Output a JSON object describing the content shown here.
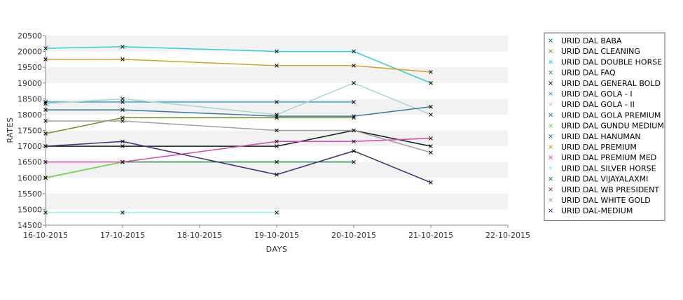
{
  "chart_data": {
    "type": "line",
    "xlabel": "DAYS",
    "ylabel": "RATES",
    "x_ticks": [
      "16-10-2015",
      "17-10-2015",
      "18-10-2015",
      "19-10-2015",
      "20-10-2015",
      "21-10-2015",
      "22-10-2015"
    ],
    "y_ticks": [
      14500,
      15000,
      15500,
      16000,
      16500,
      17000,
      17500,
      18000,
      18500,
      19000,
      19500,
      20000,
      20500
    ],
    "ylim": [
      14500,
      20500
    ],
    "x_domain": [
      "16-10-2015",
      "22-10-2015"
    ],
    "grid": "alternating horizontal bands",
    "legend_position": "right",
    "series": [
      {
        "name": "URID DAL BABA",
        "color": "#1a8a3a",
        "points": [
          [
            "16-10-2015",
            16000
          ],
          [
            "17-10-2015",
            16500
          ],
          [
            "19-10-2015",
            16500
          ],
          [
            "20-10-2015",
            16500
          ]
        ]
      },
      {
        "name": "URID DAL CLEANING",
        "color": "#6b8e23",
        "points": [
          [
            "16-10-2015",
            17400
          ],
          [
            "17-10-2015",
            17900
          ],
          [
            "19-10-2015",
            17900
          ],
          [
            "20-10-2015",
            17900
          ]
        ]
      },
      {
        "name": "URID DAL DOUBLE HORSE",
        "color": "#2ed0d8",
        "points": [
          [
            "16-10-2015",
            20100
          ],
          [
            "17-10-2015",
            20150
          ],
          [
            "19-10-2015",
            20000
          ],
          [
            "20-10-2015",
            20000
          ],
          [
            "21-10-2015",
            19000
          ]
        ]
      },
      {
        "name": "URID DAL FAQ",
        "color": "#4a8a6a",
        "points": []
      },
      {
        "name": "URID DAL GENERAL BOLD",
        "color": "#0a1f1f",
        "points": [
          [
            "16-10-2015",
            17000
          ],
          [
            "17-10-2015",
            17000
          ],
          [
            "19-10-2015",
            17000
          ],
          [
            "20-10-2015",
            17500
          ],
          [
            "21-10-2015",
            17000
          ]
        ]
      },
      {
        "name": "URID DAL GOLA - I",
        "color": "#3aa0d0",
        "points": [
          [
            "16-10-2015",
            18400
          ],
          [
            "17-10-2015",
            18400
          ],
          [
            "19-10-2015",
            18400
          ],
          [
            "20-10-2015",
            18400
          ]
        ]
      },
      {
        "name": "URID DAL GOLA - II",
        "color": "#a8d8c8",
        "points": [
          [
            "16-10-2015",
            18350
          ],
          [
            "17-10-2015",
            18500
          ],
          [
            "19-10-2015",
            18000
          ],
          [
            "20-10-2015",
            19000
          ],
          [
            "21-10-2015",
            18000
          ]
        ]
      },
      {
        "name": "URID DAL GOLA PREMIUM",
        "color": "#3a7a9a",
        "points": [
          [
            "16-10-2015",
            18150
          ],
          [
            "17-10-2015",
            18150
          ],
          [
            "19-10-2015",
            17950
          ],
          [
            "20-10-2015",
            17950
          ],
          [
            "21-10-2015",
            18250
          ]
        ]
      },
      {
        "name": "URID DAL GUNDU MEDIUM",
        "color": "#7fd44a",
        "points": [
          [
            "16-10-2015",
            16000
          ],
          [
            "17-10-2015",
            16500
          ]
        ]
      },
      {
        "name": "URID DAL HANUMAN",
        "color": "#2a6a7a",
        "points": []
      },
      {
        "name": "URID DAL PREMIUM",
        "color": "#d4a020",
        "points": [
          [
            "16-10-2015",
            19750
          ],
          [
            "17-10-2015",
            19750
          ],
          [
            "19-10-2015",
            19550
          ],
          [
            "20-10-2015",
            19550
          ],
          [
            "21-10-2015",
            19350
          ]
        ]
      },
      {
        "name": "URID DAL PREMIUM MED",
        "color": "#e040b0",
        "points": [
          [
            "16-10-2015",
            16500
          ],
          [
            "17-10-2015",
            16500
          ],
          [
            "19-10-2015",
            17150
          ],
          [
            "20-10-2015",
            17150
          ],
          [
            "21-10-2015",
            17250
          ]
        ]
      },
      {
        "name": "URID DAL SILVER HORSE",
        "color": "#8cf0f0",
        "points": [
          [
            "16-10-2015",
            14900
          ],
          [
            "17-10-2015",
            14900
          ],
          [
            "19-10-2015",
            14900
          ]
        ]
      },
      {
        "name": "URID DAL VIJAYALAXMI",
        "color": "#1a7a8a",
        "points": []
      },
      {
        "name": "URID DAL WB PRESIDENT",
        "color": "#8a2a6a",
        "points": []
      },
      {
        "name": "URID DAL WHITE GOLD",
        "color": "#a0a0a0",
        "points": [
          [
            "16-10-2015",
            17800
          ],
          [
            "17-10-2015",
            17800
          ],
          [
            "19-10-2015",
            17500
          ],
          [
            "20-10-2015",
            17500
          ],
          [
            "21-10-2015",
            16800
          ]
        ]
      },
      {
        "name": "URID DAL-MEDIUM",
        "color": "#4a2a7a",
        "points": [
          [
            "16-10-2015",
            17000
          ],
          [
            "17-10-2015",
            17150
          ],
          [
            "19-10-2015",
            16100
          ],
          [
            "20-10-2015",
            16850
          ],
          [
            "21-10-2015",
            15850
          ]
        ]
      }
    ]
  }
}
